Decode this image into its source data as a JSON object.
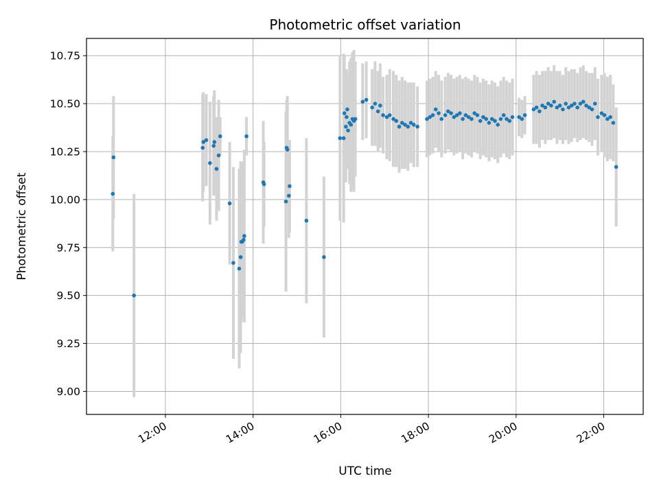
{
  "chart_data": {
    "type": "scatter",
    "title": "Photometric offset variation",
    "xlabel": "UTC time",
    "ylabel": "Photometric offset",
    "xlim": [
      "10:12",
      "22:54"
    ],
    "ylim": [
      8.88,
      10.84
    ],
    "grid": true,
    "x_ticks": [
      "12:00",
      "14:00",
      "16:00",
      "18:00",
      "20:00",
      "22:00"
    ],
    "y_ticks": [
      "9.00",
      "9.25",
      "9.50",
      "9.75",
      "10.00",
      "10.25",
      "10.50",
      "10.75"
    ],
    "marker_color": "#1f77b4",
    "errorbar_color": "#d3d3d3",
    "series": [
      {
        "x": [
          "10:48",
          "10:49",
          "11:17",
          "12:51",
          "12:52",
          "12:56",
          "13:01",
          "13:06",
          "13:07",
          "13:10",
          "13:13",
          "13:15",
          "13:28",
          "13:33",
          "13:41",
          "13:43",
          "13:44",
          "13:45",
          "13:47",
          "13:48",
          "13:51",
          "14:14",
          "14:15",
          "14:45",
          "14:46",
          "14:47",
          "14:49",
          "14:50",
          "15:13",
          "15:37",
          "15:59",
          "16:04",
          "16:05",
          "16:07",
          "16:08",
          "16:09",
          "16:10",
          "16:12",
          "16:14",
          "16:16",
          "16:18",
          "16:20",
          "16:30",
          "16:35",
          "16:43",
          "16:47",
          "16:51",
          "16:54",
          "16:58",
          "17:03",
          "17:07",
          "17:12",
          "17:16",
          "17:20",
          "17:24",
          "17:28",
          "17:32",
          "17:36",
          "17:40",
          "17:45",
          "17:58",
          "18:02",
          "18:06",
          "18:10",
          "18:14",
          "18:18",
          "18:23",
          "18:27",
          "18:31",
          "18:35",
          "18:39",
          "18:43",
          "18:47",
          "18:51",
          "18:55",
          "18:59",
          "19:03",
          "19:07",
          "19:11",
          "19:15",
          "19:19",
          "19:23",
          "19:27",
          "19:31",
          "19:35",
          "19:39",
          "19:43",
          "19:47",
          "19:51",
          "19:55",
          "20:04",
          "20:08",
          "20:12",
          "20:24",
          "20:28",
          "20:32",
          "20:36",
          "20:40",
          "20:44",
          "20:48",
          "20:52",
          "20:56",
          "21:00",
          "21:04",
          "21:08",
          "21:12",
          "21:16",
          "21:20",
          "21:24",
          "21:28",
          "21:32",
          "21:36",
          "21:40",
          "21:44",
          "21:48",
          "21:52",
          "21:57",
          "22:01",
          "22:05",
          "22:09",
          "22:13",
          "22:17"
        ],
        "y": [
          10.03,
          10.22,
          9.5,
          10.27,
          10.3,
          10.31,
          10.19,
          10.28,
          10.3,
          10.16,
          10.23,
          10.33,
          9.98,
          9.67,
          9.64,
          9.7,
          9.78,
          9.78,
          9.79,
          9.81,
          10.33,
          10.09,
          10.08,
          9.99,
          10.27,
          10.26,
          10.02,
          10.07,
          9.89,
          9.7,
          10.32,
          10.32,
          10.45,
          10.38,
          10.43,
          10.47,
          10.36,
          10.4,
          10.39,
          10.42,
          10.41,
          10.42,
          10.51,
          10.52,
          10.48,
          10.5,
          10.46,
          10.49,
          10.44,
          10.43,
          10.44,
          10.42,
          10.41,
          10.38,
          10.4,
          10.39,
          10.38,
          10.4,
          10.39,
          10.38,
          10.42,
          10.43,
          10.44,
          10.47,
          10.45,
          10.42,
          10.44,
          10.46,
          10.45,
          10.43,
          10.44,
          10.45,
          10.42,
          10.44,
          10.43,
          10.42,
          10.45,
          10.44,
          10.41,
          10.43,
          10.42,
          10.4,
          10.42,
          10.41,
          10.39,
          10.42,
          10.44,
          10.42,
          10.41,
          10.43,
          10.43,
          10.42,
          10.44,
          10.47,
          10.48,
          10.46,
          10.49,
          10.48,
          10.5,
          10.49,
          10.51,
          10.48,
          10.49,
          10.47,
          10.5,
          10.48,
          10.49,
          10.5,
          10.48,
          10.5,
          10.51,
          10.49,
          10.48,
          10.47,
          10.5,
          10.43,
          10.45,
          10.44,
          10.42,
          10.43,
          10.4,
          10.17
        ],
        "y_error": [
          0.3,
          0.32,
          0.53,
          0.28,
          0.26,
          0.24,
          0.32,
          0.26,
          0.27,
          0.27,
          0.29,
          0.1,
          0.32,
          0.5,
          0.52,
          0.5,
          0.42,
          0.38,
          0.4,
          0.45,
          0.1,
          0.32,
          0.22,
          0.47,
          0.25,
          0.28,
          0.22,
          0.24,
          0.43,
          0.42,
          0.43,
          0.44,
          0.3,
          0.29,
          0.25,
          0.17,
          0.2,
          0.32,
          0.35,
          0.35,
          0.37,
          0.3,
          0.2,
          0.2,
          0.2,
          0.22,
          0.21,
          0.22,
          0.2,
          0.22,
          0.24,
          0.25,
          0.24,
          0.24,
          0.24,
          0.23,
          0.23,
          0.21,
          0.22,
          0.21,
          0.2,
          0.2,
          0.2,
          0.2,
          0.2,
          0.2,
          0.2,
          0.2,
          0.2,
          0.2,
          0.2,
          0.2,
          0.21,
          0.2,
          0.2,
          0.2,
          0.2,
          0.2,
          0.2,
          0.2,
          0.2,
          0.2,
          0.2,
          0.2,
          0.2,
          0.2,
          0.2,
          0.2,
          0.2,
          0.2,
          0.1,
          0.1,
          0.1,
          0.18,
          0.19,
          0.19,
          0.18,
          0.19,
          0.19,
          0.18,
          0.19,
          0.19,
          0.18,
          0.18,
          0.19,
          0.19,
          0.19,
          0.18,
          0.18,
          0.19,
          0.19,
          0.18,
          0.18,
          0.19,
          0.19,
          0.2,
          0.2,
          0.22,
          0.22,
          0.22,
          0.2,
          0.31
        ]
      }
    ]
  }
}
